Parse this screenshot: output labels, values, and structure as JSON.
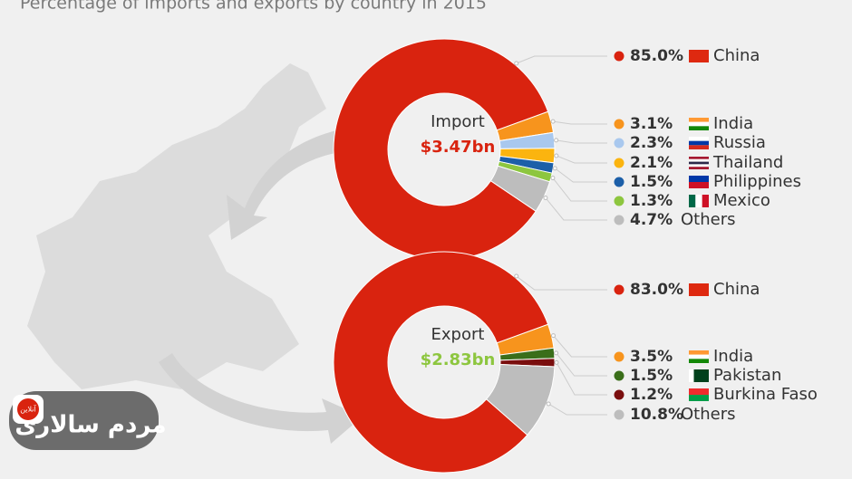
{
  "title": "Percentage of imports and exports by country in 2015",
  "chart_data": [
    {
      "type": "pie",
      "label": "Import",
      "total": "$3.47bn",
      "total_color": "#d9230f",
      "categories": [
        "China",
        "India",
        "Russia",
        "Thailand",
        "Philippines",
        "Mexico",
        "Others"
      ],
      "values": [
        85.0,
        3.1,
        2.3,
        2.1,
        1.5,
        1.3,
        4.7
      ],
      "value_labels": [
        "85.0%",
        "3.1%",
        "2.3%",
        "2.1%",
        "1.5%",
        "1.3%",
        "4.7%"
      ],
      "colors": [
        "#d9230f",
        "#f7941d",
        "#a9c8ee",
        "#fbb40f",
        "#1c5fa8",
        "#8dc63f",
        "#bdbdbd"
      ]
    },
    {
      "type": "pie",
      "label": "Export",
      "total": "$2.83bn",
      "total_color": "#8dc63f",
      "categories": [
        "China",
        "India",
        "Pakistan",
        "Burkina Faso",
        "Others"
      ],
      "values": [
        83.0,
        3.5,
        1.5,
        1.2,
        10.8
      ],
      "value_labels": [
        "83.0%",
        "3.5%",
        "1.5%",
        "1.2%",
        "10.8%"
      ],
      "colors": [
        "#d9230f",
        "#f7941d",
        "#3a6e1a",
        "#7a0e0e",
        "#bdbdbd"
      ]
    }
  ],
  "watermark": {
    "name": "مردم سالاری",
    "badge": "آنلاین"
  }
}
